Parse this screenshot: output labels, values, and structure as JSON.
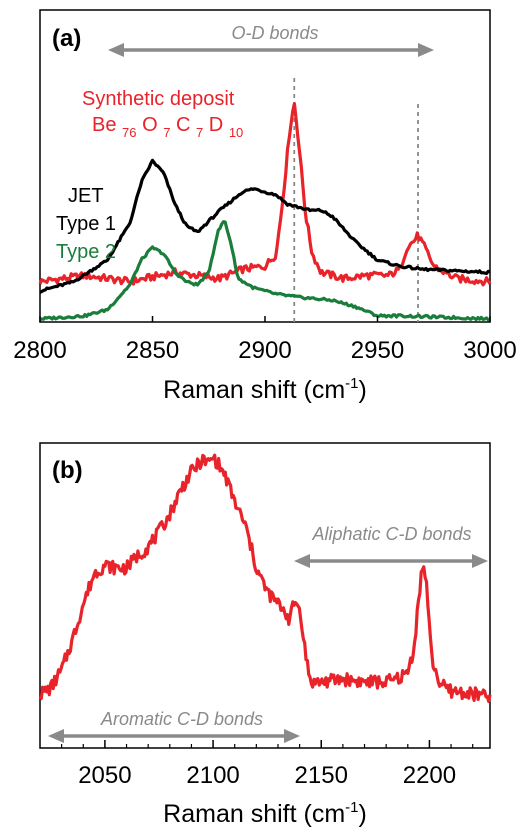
{
  "chart_data": [
    {
      "panel": "(a)",
      "type": "line",
      "xlabel": "Raman shift (cm",
      "xlabel_sup": "-1",
      "xlabel_close": ")",
      "xlim": [
        2800,
        3000
      ],
      "xticks": [
        2800,
        2850,
        2900,
        2950,
        3000
      ],
      "x_tick_labels": [
        "2800",
        "2850",
        "2900",
        "2950",
        "3000"
      ],
      "y_ticks_shown": false,
      "annotation": {
        "text": "O-D bonds",
        "x_from": 2825,
        "x_to": 2975
      },
      "reference_lines": [
        2913,
        2968
      ],
      "legend": {
        "synthetic_line1": "Synthetic deposit",
        "synthetic_base": "Be",
        "synthetic_parts": [
          {
            "sub": "76",
            "el": "O"
          },
          {
            "sub": "7",
            "el": "C"
          },
          {
            "sub": "7",
            "el": "D"
          },
          {
            "sub": "10",
            "el": ""
          }
        ],
        "jet_title": "JET",
        "type1": "Type 1",
        "type2": "Type 2"
      },
      "colors": {
        "synthetic": "#e8232a",
        "type1": "#000000",
        "type2": "#1a7d3b",
        "annotation": "#8a8a8a"
      },
      "series": [
        {
          "name": "Synthetic deposit",
          "color": "#e8232a",
          "x": [
            2800,
            2820,
            2840,
            2860,
            2880,
            2890,
            2900,
            2905,
            2908,
            2911,
            2913,
            2915,
            2918,
            2921,
            2925,
            2935,
            2945,
            2955,
            2960,
            2963,
            2966,
            2968,
            2971,
            2975,
            2985,
            3000
          ],
          "y": [
            0.13,
            0.15,
            0.13,
            0.16,
            0.14,
            0.17,
            0.18,
            0.22,
            0.4,
            0.62,
            0.71,
            0.58,
            0.35,
            0.22,
            0.16,
            0.14,
            0.15,
            0.15,
            0.17,
            0.24,
            0.26,
            0.28,
            0.24,
            0.18,
            0.14,
            0.13
          ]
        },
        {
          "name": "Type 1",
          "color": "#000000",
          "x": [
            2800,
            2815,
            2830,
            2840,
            2845,
            2850,
            2855,
            2860,
            2865,
            2870,
            2880,
            2890,
            2895,
            2900,
            2905,
            2910,
            2915,
            2920,
            2925,
            2930,
            2940,
            2950,
            2960,
            2970,
            3000
          ],
          "y": [
            0.1,
            0.13,
            0.2,
            0.32,
            0.45,
            0.52,
            0.48,
            0.38,
            0.31,
            0.29,
            0.36,
            0.42,
            0.43,
            0.42,
            0.41,
            0.38,
            0.37,
            0.36,
            0.36,
            0.34,
            0.26,
            0.2,
            0.18,
            0.17,
            0.16
          ]
        },
        {
          "name": "Type 2",
          "color": "#1a7d3b",
          "x": [
            2800,
            2820,
            2830,
            2840,
            2845,
            2850,
            2855,
            2860,
            2865,
            2870,
            2875,
            2879,
            2882,
            2885,
            2888,
            2895,
            2905,
            2915,
            2930,
            2940,
            2950,
            2960,
            3000
          ],
          "y": [
            0.01,
            0.02,
            0.04,
            0.12,
            0.2,
            0.24,
            0.22,
            0.16,
            0.13,
            0.12,
            0.16,
            0.29,
            0.33,
            0.25,
            0.14,
            0.11,
            0.09,
            0.08,
            0.07,
            0.05,
            0.02,
            0.02,
            0.01
          ]
        }
      ]
    },
    {
      "panel": "(b)",
      "type": "line",
      "xlabel": "Raman shift (cm",
      "xlabel_sup": "-1",
      "xlabel_close": ")",
      "xlim": [
        2020,
        2228
      ],
      "xticks": [
        2050,
        2100,
        2150,
        2200
      ],
      "x_tick_labels": [
        "2050",
        "2100",
        "2150",
        "2200"
      ],
      "y_ticks_shown": false,
      "annotations": [
        {
          "text": "Aliphatic C-D bonds",
          "x_from": 2142,
          "x_to": 2226
        },
        {
          "text": "Aromatic C-D bonds",
          "x_from": 2024,
          "x_to": 2140
        }
      ],
      "colors": {
        "series": "#e8232a",
        "annotation": "#8a8a8a"
      },
      "series": [
        {
          "color": "#e8232a",
          "x": [
            2020,
            2025,
            2030,
            2035,
            2040,
            2045,
            2050,
            2055,
            2060,
            2065,
            2070,
            2075,
            2080,
            2085,
            2090,
            2095,
            2098,
            2100,
            2103,
            2106,
            2110,
            2115,
            2120,
            2125,
            2130,
            2133,
            2135,
            2137,
            2139,
            2141,
            2143,
            2145,
            2150,
            2160,
            2170,
            2180,
            2185,
            2190,
            2193,
            2195,
            2197,
            2199,
            2201,
            2205,
            2210,
            2220,
            2228
          ],
          "y": [
            0.18,
            0.2,
            0.26,
            0.36,
            0.48,
            0.58,
            0.61,
            0.6,
            0.6,
            0.64,
            0.67,
            0.72,
            0.78,
            0.86,
            0.92,
            0.96,
            0.95,
            0.97,
            0.94,
            0.9,
            0.82,
            0.74,
            0.6,
            0.52,
            0.48,
            0.46,
            0.43,
            0.47,
            0.49,
            0.42,
            0.3,
            0.22,
            0.22,
            0.23,
            0.22,
            0.22,
            0.23,
            0.25,
            0.34,
            0.5,
            0.62,
            0.52,
            0.3,
            0.21,
            0.19,
            0.18,
            0.17
          ]
        }
      ]
    }
  ]
}
